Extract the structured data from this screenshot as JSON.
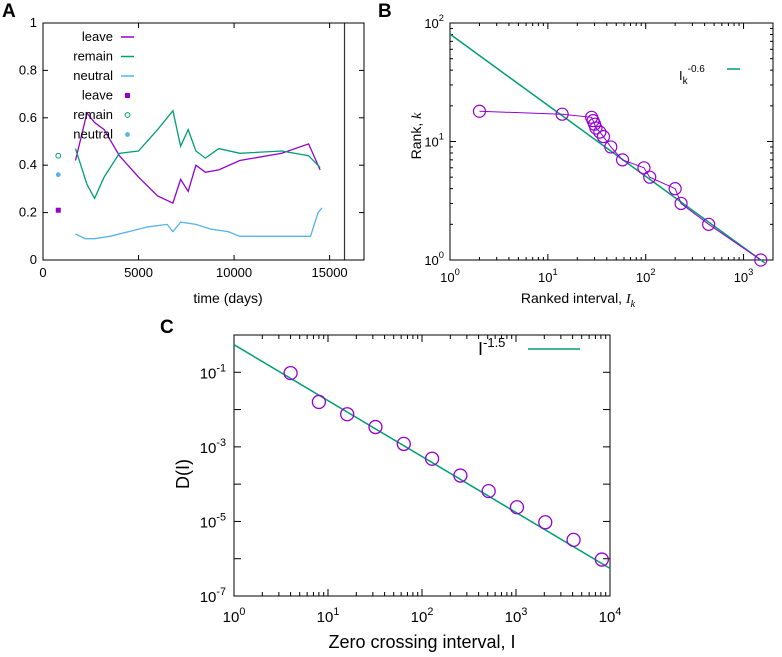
{
  "colors": {
    "leave": "#9400d3",
    "remain": "#009e73",
    "neutral": "#56b4e9",
    "axis": "#000000"
  },
  "chart_data": [
    {
      "panel": "A",
      "type": "line",
      "xlabel": "time (days)",
      "ylabel": "",
      "xlim": [
        0,
        16800
      ],
      "ylim": [
        0,
        1
      ],
      "xticks": [
        "0",
        "5000",
        "10000",
        "15000"
      ],
      "yticks": [
        "0",
        "0.2",
        "0.4",
        "0.6",
        "0.8",
        "1"
      ],
      "vline_x": 15780,
      "legend_position": "top-left",
      "series": [
        {
          "name": "leave",
          "kind": "line",
          "color_key": "leave",
          "x": [
            1700,
            2300,
            2700,
            3200,
            4000,
            5000,
            6000,
            6800,
            7200,
            7600,
            8000,
            8500,
            9200,
            10300,
            12500,
            13900,
            14500
          ],
          "y": [
            0.42,
            0.62,
            0.58,
            0.55,
            0.44,
            0.35,
            0.27,
            0.24,
            0.34,
            0.29,
            0.4,
            0.37,
            0.38,
            0.42,
            0.45,
            0.49,
            0.38
          ]
        },
        {
          "name": "remain",
          "kind": "line",
          "color_key": "remain",
          "x": [
            1700,
            2300,
            2700,
            3200,
            4000,
            5000,
            6000,
            6800,
            7200,
            7600,
            8000,
            8500,
            9200,
            10300,
            12500,
            13900,
            14500
          ],
          "y": [
            0.47,
            0.32,
            0.26,
            0.35,
            0.45,
            0.46,
            0.55,
            0.63,
            0.48,
            0.55,
            0.46,
            0.43,
            0.47,
            0.45,
            0.46,
            0.44,
            0.39
          ]
        },
        {
          "name": "neutral",
          "kind": "line",
          "color_key": "neutral",
          "x": [
            1700,
            2200,
            2700,
            3500,
            4500,
            5500,
            6500,
            6800,
            7200,
            8000,
            8800,
            9700,
            10300,
            12000,
            14000,
            14400,
            14600
          ],
          "y": [
            0.11,
            0.09,
            0.09,
            0.1,
            0.12,
            0.14,
            0.15,
            0.12,
            0.16,
            0.15,
            0.13,
            0.12,
            0.1,
            0.1,
            0.1,
            0.2,
            0.22
          ]
        },
        {
          "name": "leave",
          "kind": "point",
          "marker": "filled-square",
          "color_key": "leave",
          "x": [
            800
          ],
          "y": [
            0.21
          ]
        },
        {
          "name": "remain",
          "kind": "point",
          "marker": "open-circle",
          "color_key": "remain",
          "x": [
            800
          ],
          "y": [
            0.44
          ]
        },
        {
          "name": "neutral",
          "kind": "point",
          "marker": "filled-circle",
          "color_key": "neutral",
          "x": [
            800
          ],
          "y": [
            0.36
          ]
        }
      ]
    },
    {
      "panel": "B",
      "type": "scatter",
      "xscale": "log",
      "yscale": "log",
      "xlabel": "Ranked interval, ",
      "xlabel_var": "I",
      "xlabel_sub": "k",
      "ylabel": "Rank, ",
      "ylabel_var": "k",
      "xlim": [
        1,
        2000
      ],
      "ylim": [
        1,
        100
      ],
      "xtick_bases": [
        "10",
        "10",
        "10",
        "10"
      ],
      "xtick_exponents": [
        "0",
        "1",
        "2",
        "3"
      ],
      "ytick_bases": [
        "10",
        "10",
        "10"
      ],
      "ytick_exponents": [
        "0",
        "1",
        "2"
      ],
      "legend": {
        "base": "I",
        "sub": "k",
        "exp": "-0.6",
        "position": "top-right"
      },
      "fit": {
        "prefactor": 80.5,
        "exponent": -0.6
      },
      "points": {
        "x": [
          2,
          14,
          28,
          29,
          30,
          31,
          34,
          37,
          44,
          58,
          96,
          110,
          200,
          230,
          440,
          1500
        ],
        "y": [
          18,
          17,
          16,
          15,
          14,
          13,
          12,
          11,
          9,
          7,
          6,
          5,
          4,
          3,
          2,
          1
        ]
      }
    },
    {
      "panel": "C",
      "type": "scatter",
      "xscale": "log",
      "yscale": "log",
      "xlabel": "Zero crossing interval, I",
      "ylabel": "D(I)",
      "xlim": [
        1,
        10000
      ],
      "ylim": [
        1e-07,
        1
      ],
      "xtick_bases": [
        "10",
        "10",
        "10",
        "10",
        "10"
      ],
      "xtick_exponents": [
        "0",
        "1",
        "2",
        "3",
        "4"
      ],
      "ytick_bases": [
        "10",
        "10",
        "10",
        "10"
      ],
      "ytick_exponents": [
        "-1",
        "-3",
        "-5",
        "-7"
      ],
      "legend": {
        "base": "I",
        "exp": "-1.5",
        "position": "top-right"
      },
      "fit": {
        "prefactor": 0.55,
        "exponent": -1.5
      },
      "points": {
        "x": [
          4,
          8,
          16,
          32,
          64,
          128,
          256,
          512,
          1024,
          2048,
          4096,
          8192
        ],
        "y": [
          0.095,
          0.016,
          0.0075,
          0.0034,
          0.0012,
          0.00048,
          0.00017,
          6.5e-05,
          2.4e-05,
          9.5e-06,
          3.2e-06,
          9.5e-07
        ]
      }
    }
  ]
}
